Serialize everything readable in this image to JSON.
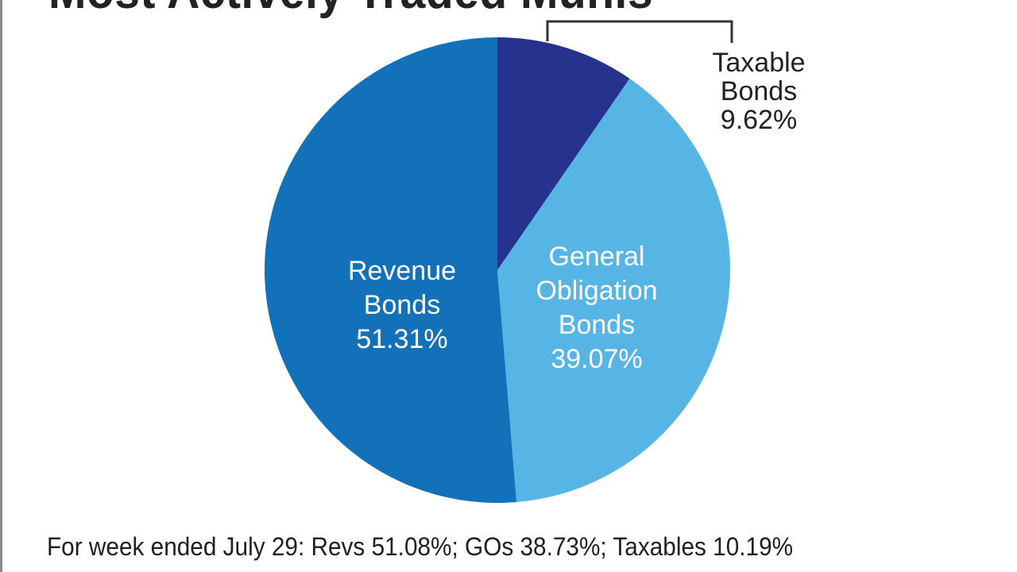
{
  "chart_data": {
    "type": "pie",
    "title": "Most Actively Traded Munis",
    "start_angle_deg": 0,
    "direction": "clockwise",
    "slices": [
      {
        "label_lines": [
          "Taxable",
          "Bonds",
          "9.62%"
        ],
        "value": 9.62,
        "color": "#25338f",
        "label_color": "#222222",
        "label_position": "outside-top-right"
      },
      {
        "label_lines": [
          "General",
          "Obligation",
          "Bonds",
          "39.07%"
        ],
        "value": 39.07,
        "color": "#57b5e5",
        "label_color": "#ffffff",
        "label_position": "inside"
      },
      {
        "label_lines": [
          "Revenue",
          "Bonds",
          "51.31%"
        ],
        "value": 51.31,
        "color": "#1271b8",
        "label_color": "#ffffff",
        "label_position": "inside"
      }
    ],
    "footnote": "For week ended July 29: Revs 51.08%; GOs 38.73%; Taxables 10.19%"
  }
}
